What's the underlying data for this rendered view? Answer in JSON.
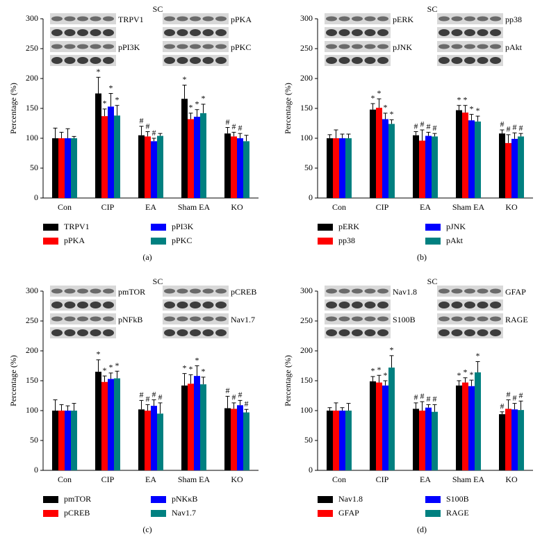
{
  "chart_data": [
    {
      "type": "bar",
      "title": "SC",
      "ylabel": "Percentage (%)",
      "panel": "(a)",
      "categories": [
        "Con",
        "CIP",
        "EA",
        "Sham EA",
        "KO"
      ],
      "ylim": [
        0,
        300
      ],
      "yticks": [
        0,
        50,
        100,
        150,
        200,
        250,
        300
      ],
      "blot_labels": [
        "TRPV1",
        "pPI3K",
        "pPKA",
        "pPKC"
      ],
      "series": [
        {
          "name": "TRPV1",
          "color": "#000000",
          "values": [
            100,
            175,
            105,
            166,
            108
          ],
          "errors": [
            17,
            27,
            15,
            23,
            10
          ],
          "markers": [
            null,
            "*",
            "#",
            "*",
            "#"
          ]
        },
        {
          "name": "pPKA",
          "color": "#ff0000",
          "values": [
            100,
            137,
            103,
            132,
            103
          ],
          "errors": [
            10,
            12,
            8,
            10,
            7
          ],
          "markers": [
            null,
            "*",
            "#",
            "*",
            "#"
          ]
        },
        {
          "name": "pPI3K",
          "color": "#0000ff",
          "values": [
            100,
            153,
            95,
            136,
            100
          ],
          "errors": [
            16,
            22,
            5,
            12,
            8
          ],
          "markers": [
            null,
            "*",
            "#",
            "*",
            "#"
          ]
        },
        {
          "name": "pPKC",
          "color": "#008080",
          "values": [
            100,
            138,
            104,
            142,
            95
          ],
          "errors": [
            3,
            17,
            4,
            15,
            10
          ],
          "markers": [
            null,
            "*",
            null,
            "*",
            null
          ]
        }
      ]
    },
    {
      "type": "bar",
      "title": "SC",
      "ylabel": "Percentage (%)",
      "panel": "(b)",
      "categories": [
        "Con",
        "CIP",
        "EA",
        "Sham EA",
        "KO"
      ],
      "ylim": [
        0,
        300
      ],
      "yticks": [
        0,
        50,
        100,
        150,
        200,
        250,
        300
      ],
      "blot_labels": [
        "pERK",
        "pJNK",
        "pp38",
        "pAkt"
      ],
      "series": [
        {
          "name": "pERK",
          "color": "#000000",
          "values": [
            100,
            148,
            105,
            147,
            108
          ],
          "errors": [
            6,
            10,
            6,
            8,
            6
          ],
          "markers": [
            null,
            "*",
            "#",
            "*",
            "#"
          ]
        },
        {
          "name": "pp38",
          "color": "#ff0000",
          "values": [
            100,
            151,
            96,
            143,
            92
          ],
          "errors": [
            14,
            15,
            18,
            12,
            14
          ],
          "markers": [
            null,
            "*",
            "#",
            "*",
            "#"
          ]
        },
        {
          "name": "pJNK",
          "color": "#0000ff",
          "values": [
            100,
            132,
            104,
            130,
            99
          ],
          "errors": [
            7,
            10,
            6,
            10,
            10
          ],
          "markers": [
            null,
            "*",
            "#",
            "*",
            "#"
          ]
        },
        {
          "name": "pAkt",
          "color": "#008080",
          "values": [
            100,
            124,
            103,
            128,
            103
          ],
          "errors": [
            7,
            7,
            5,
            9,
            5
          ],
          "markers": [
            null,
            "*",
            "#",
            "*",
            "#"
          ]
        }
      ]
    },
    {
      "type": "bar",
      "title": "SC",
      "ylabel": "Percentage (%)",
      "panel": "(c)",
      "categories": [
        "Con",
        "CIP",
        "EA",
        "Sham EA",
        "KO"
      ],
      "ylim": [
        0,
        300
      ],
      "yticks": [
        0,
        50,
        100,
        150,
        200,
        250,
        300
      ],
      "blot_labels": [
        "pmTOR",
        "pNFkB",
        "pCREB",
        "Nav1.7"
      ],
      "series": [
        {
          "name": "pmTOR",
          "color": "#000000",
          "values": [
            100,
            165,
            102,
            142,
            104
          ],
          "errors": [
            18,
            20,
            15,
            20,
            20
          ],
          "markers": [
            null,
            "*",
            "#",
            "*",
            "#"
          ]
        },
        {
          "name": "pCREB",
          "color": "#ff0000",
          "values": [
            100,
            148,
            100,
            145,
            103
          ],
          "errors": [
            10,
            10,
            10,
            15,
            10
          ],
          "markers": [
            null,
            "*",
            "#",
            "*",
            "#"
          ]
        },
        {
          "name": "pNKκB",
          "color": "#0000ff",
          "values": [
            100,
            153,
            108,
            158,
            109
          ],
          "errors": [
            8,
            10,
            10,
            17,
            8
          ],
          "markers": [
            null,
            "*",
            "#",
            "*",
            "#"
          ]
        },
        {
          "name": "Nav1.7",
          "color": "#008080",
          "values": [
            100,
            154,
            95,
            144,
            97
          ],
          "errors": [
            12,
            12,
            18,
            12,
            5
          ],
          "markers": [
            null,
            "*",
            "#",
            "*",
            "#"
          ]
        }
      ]
    },
    {
      "type": "bar",
      "title": "SC",
      "ylabel": "Percentage (%)",
      "panel": "(d)",
      "categories": [
        "Con",
        "CIP",
        "EA",
        "Sham EA",
        "KO"
      ],
      "ylim": [
        0,
        300
      ],
      "yticks": [
        0,
        50,
        100,
        150,
        200,
        250,
        300
      ],
      "blot_labels": [
        "Nav1.8",
        "S100B",
        "GFAP",
        "RAGE"
      ],
      "series": [
        {
          "name": "Nav1.8",
          "color": "#000000",
          "values": [
            100,
            149,
            103,
            142,
            94
          ],
          "errors": [
            5,
            8,
            10,
            8,
            4
          ],
          "markers": [
            null,
            "*",
            "#",
            "*",
            "#"
          ]
        },
        {
          "name": "GFAP",
          "color": "#ff0000",
          "values": [
            100,
            147,
            100,
            147,
            103
          ],
          "errors": [
            13,
            12,
            15,
            8,
            15
          ],
          "markers": [
            null,
            "*",
            "#",
            "*",
            "#"
          ]
        },
        {
          "name": "S100B",
          "color": "#0000ff",
          "values": [
            100,
            142,
            105,
            141,
            102
          ],
          "errors": [
            5,
            8,
            5,
            10,
            10
          ],
          "markers": [
            null,
            "*",
            "#",
            "*",
            "#"
          ]
        },
        {
          "name": "RAGE",
          "color": "#008080",
          "values": [
            100,
            172,
            98,
            164,
            101
          ],
          "errors": [
            12,
            20,
            12,
            18,
            15
          ],
          "markers": [
            null,
            "*",
            "#",
            "*",
            "#"
          ]
        }
      ]
    }
  ]
}
